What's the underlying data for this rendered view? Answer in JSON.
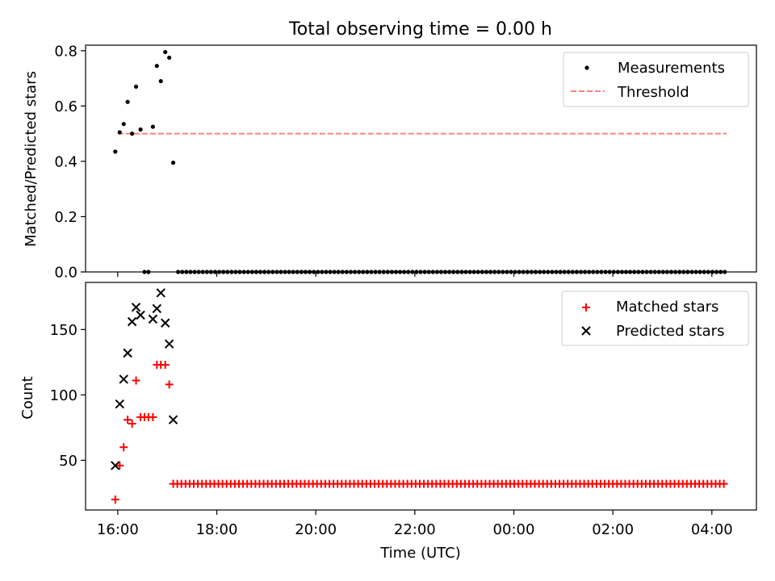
{
  "chart_data": {
    "title": "Total observing time = 0.00 h",
    "x_ticks": [
      "16:00",
      "18:00",
      "20:00",
      "22:00",
      "00:00",
      "02:00",
      "04:00"
    ],
    "x_tick_hours": [
      16,
      18,
      20,
      22,
      24,
      26,
      28
    ],
    "xlabel": "Time (UTC)",
    "xlim_hours": [
      15.35,
      28.9
    ],
    "top": {
      "type": "scatter",
      "ylabel": "Matched/Predicted stars",
      "ylim": [
        0,
        0.82
      ],
      "y_ticks": [
        "0.0",
        "0.2",
        "0.4",
        "0.6",
        "0.8"
      ],
      "y_tick_values": [
        0,
        0.2,
        0.4,
        0.6,
        0.8
      ],
      "legend_position": "top-right",
      "series": [
        {
          "name": "Measurements",
          "kind": "points",
          "color": "#000000",
          "x_hours": [
            15.95,
            16.04,
            16.12,
            16.2,
            16.29,
            16.37,
            16.46,
            16.54,
            16.62,
            16.71,
            16.79,
            16.87,
            16.96,
            17.04,
            17.12
          ],
          "y": [
            0.435,
            0.505,
            0.535,
            0.615,
            0.5,
            0.67,
            0.515,
            0.0,
            0.0,
            0.525,
            0.745,
            0.69,
            0.795,
            0.775,
            0.395
          ]
        },
        {
          "name": "Threshold",
          "kind": "dashed-line",
          "color": "#ff7f7f",
          "x_hours": [
            16.0,
            28.3
          ],
          "y": [
            0.5,
            0.5
          ]
        }
      ],
      "zero_band": {
        "x_start_hours": 17.22,
        "x_end_hours": 28.28,
        "step_hours": 0.083,
        "y": 0
      }
    },
    "bottom": {
      "type": "scatter",
      "ylabel": "Count",
      "ylim": [
        12,
        186
      ],
      "y_ticks": [
        "50",
        "100",
        "150"
      ],
      "y_tick_values": [
        50,
        100,
        150
      ],
      "legend_position": "top-right",
      "series": [
        {
          "name": "Matched stars",
          "marker": "plus",
          "color": "#ff0000",
          "x_hours": [
            15.95,
            16.04,
            16.12,
            16.2,
            16.29,
            16.37,
            16.46,
            16.54,
            16.62,
            16.71,
            16.79,
            16.87,
            16.96,
            17.04
          ],
          "y": [
            20,
            46,
            60,
            81,
            78,
            111,
            83,
            83,
            83,
            83,
            123,
            123,
            123,
            108
          ]
        },
        {
          "name": "Predicted stars",
          "marker": "x",
          "color": "#000000",
          "x_hours": [
            15.95,
            16.04,
            16.12,
            16.2,
            16.29,
            16.37,
            16.46,
            16.71,
            16.79,
            16.87,
            16.96,
            17.04,
            17.12
          ],
          "y": [
            46,
            93,
            112,
            132,
            156,
            167,
            161,
            158,
            166,
            178,
            155,
            139,
            81
          ]
        }
      ],
      "constant_band": {
        "series": "Matched stars",
        "x_start_hours": 17.12,
        "x_end_hours": 28.32,
        "step_hours": 0.083,
        "y": 32
      }
    }
  }
}
